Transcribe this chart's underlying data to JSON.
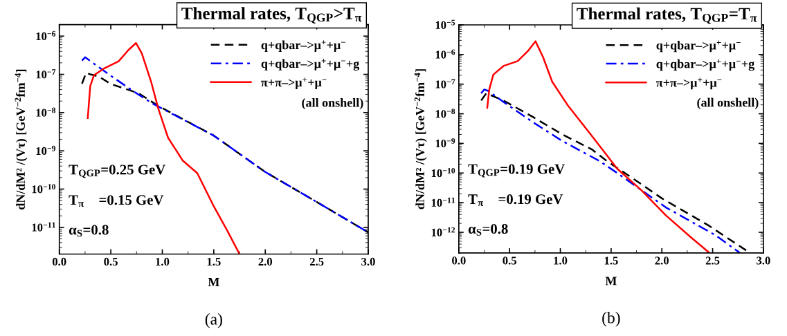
{
  "chart_data": [
    {
      "type": "line",
      "title": "Thermal rates, T$_{QGP}$>T$_{π}$",
      "xlabel": "M",
      "ylabel": "dN/dM² /(Vτ) [GeV$^{−2}$fm$^{−4}$]",
      "log": "y",
      "legend": "top right",
      "xlim": [
        0.0,
        3.0
      ],
      "xticks": [
        {
          "value": 0.0,
          "label": "0.0"
        },
        0.5,
        {
          "value": 1.0,
          "label": "1.0"
        },
        1.5,
        {
          "value": 2.0,
          "label": "2.0"
        },
        2.5,
        {
          "value": 3.0,
          "label": "3.0"
        }
      ],
      "ylim": [
        2e-12,
        2e-06
      ],
      "yticks": [
        {
          "value": 1e-11,
          "label": "10$^{−11}$"
        },
        {
          "value": 1e-10,
          "label": "10$^{−10}$"
        },
        {
          "value": 1e-09,
          "label": "10$^{−9}$"
        },
        {
          "value": 1e-08,
          "label": "10$^{−8}$"
        },
        {
          "value": 1e-07,
          "label": "10$^{−7}$"
        },
        {
          "value": 1e-06,
          "label": "10$^{−6}$"
        }
      ],
      "series": [
        {
          "name": "q+qbar–>μ$^{+}$+μ$^{−}$",
          "color": "#000000",
          "line_style": "dashed",
          "x": [
            0.22,
            0.26,
            0.3,
            0.38,
            0.5,
            0.77,
            0.96,
            1.5,
            2.0,
            2.5,
            3.0
          ],
          "values": [
            5.7e-08,
            1.1e-07,
            1e-07,
            8.9e-08,
            5.6e-08,
            3.2e-08,
            1.5e-08,
            2.5e-09,
            2.8e-10,
            4.6e-11,
            7.4e-12
          ]
        },
        {
          "name": "q+qbar–>μ$^{+}$+μ$^{−}$+g",
          "color": "#0000ff",
          "line_style": "dashdot",
          "x": [
            0.22,
            0.25,
            0.48,
            0.72,
            0.91,
            1.5,
            2.0,
            2.5,
            3.0
          ],
          "values": [
            2.3e-07,
            2.8e-07,
            1e-07,
            3.6e-08,
            1.7e-08,
            2.5e-09,
            2.8e-10,
            4.6e-11,
            7.4e-12
          ]
        },
        {
          "name": "π+π–>μ$^{+}$+μ$^{−}$",
          "color": "#ff0000",
          "line_style": "solid",
          "x": [
            0.276,
            0.3,
            0.336,
            0.43,
            0.576,
            0.67,
            0.744,
            0.8,
            0.89,
            0.96,
            1.056,
            1.2,
            1.34,
            1.49,
            1.63,
            1.75
          ],
          "values": [
            7.2e-09,
            4.9e-08,
            9.5e-08,
            1.4e-07,
            2.2e-07,
            4.3e-07,
            6.6e-07,
            3.6e-07,
            6.6e-08,
            1.3e-08,
            2.2e-09,
            5.5e-10,
            2.6e-10,
            4e-11,
            8.3e-12,
            2e-12
          ]
        }
      ],
      "annotations": [
        "(all onshell)",
        "T$_{QGP}$=0.25 GeV",
        "T$_{π}$    =0.15 GeV",
        "α$_{S}$=0.8",
        "(a)"
      ]
    },
    {
      "type": "line",
      "title": "Thermal rates, T$_{QGP}$=T$_{π}$",
      "xlabel": "M",
      "ylabel": "dN/dM² /(Vτ) [GeV$^{−2}$fm$^{−4}$]",
      "log": "y",
      "legend": "top right",
      "xlim": [
        0.0,
        3.0
      ],
      "xticks": [
        {
          "value": 0.0,
          "label": "0.0"
        },
        0.5,
        {
          "value": 1.0,
          "label": "1.0"
        },
        1.5,
        {
          "value": 2.0,
          "label": "2.0"
        },
        2.5,
        {
          "value": 3.0,
          "label": "3.0"
        }
      ],
      "ylim": [
        2e-13,
        1e-05
      ],
      "yticks": [
        {
          "value": 1e-12,
          "label": "10$^{−12}$"
        },
        {
          "value": 1e-11,
          "label": "10$^{−11}$"
        },
        {
          "value": 1e-10,
          "label": "10$^{−10}$"
        },
        {
          "value": 1e-09,
          "label": "10$^{−9}$"
        },
        {
          "value": 1e-08,
          "label": "10$^{−8}$"
        },
        {
          "value": 1e-07,
          "label": "10$^{−7}$"
        },
        {
          "value": 1e-06,
          "label": "10$^{−6}$"
        },
        {
          "value": 1e-05,
          "label": "10$^{−5}$"
        }
      ],
      "series": [
        {
          "name": "q+qbar–>μ$^{+}$+μ$^{−}$",
          "color": "#000000",
          "line_style": "dashed",
          "x": [
            0.22,
            0.27,
            0.44,
            0.73,
            1.02,
            1.31,
            1.46,
            1.7,
            2.0,
            2.46,
            2.86
          ],
          "values": [
            2.8e-08,
            4.9e-08,
            2.8e-08,
            7.8e-09,
            2e-09,
            6.3e-10,
            2.5e-10,
            7.1e-11,
            1.4e-11,
            1.7e-12,
            2.1e-13
          ]
        },
        {
          "name": "q+qbar–>μ$^{+}$+μ$^{−}$+g",
          "color": "#0000ff",
          "line_style": "dashdot",
          "x": [
            0.22,
            0.25,
            0.29,
            0.44,
            0.73,
            1.02,
            1.39,
            1.56,
            2.04,
            2.53,
            2.77
          ],
          "values": [
            4.9e-08,
            6.6e-08,
            5.9e-08,
            2.5e-08,
            5.2e-09,
            1.2e-09,
            2.5e-10,
            1e-10,
            6.9e-12,
            7.9e-13,
            2e-13
          ]
        },
        {
          "name": "π+π–>μ$^{+}$+μ$^{−}$",
          "color": "#ff0000",
          "line_style": "solid",
          "x": [
            0.28,
            0.3,
            0.34,
            0.44,
            0.58,
            0.68,
            0.755,
            0.83,
            0.92,
            1.07,
            1.31,
            1.56,
            1.8,
            2.04,
            2.29,
            2.47
          ],
          "values": [
            1.6e-08,
            6.6e-08,
            2.1e-07,
            4.1e-07,
            6e-07,
            1.3e-06,
            2.8e-06,
            8.1e-07,
            1.2e-07,
            2e-08,
            1.8e-09,
            1.4e-10,
            2.6e-11,
            3.7e-12,
            6.6e-13,
            2e-13
          ]
        }
      ],
      "annotations": [
        "(all onshell)",
        "T$_{QGP}$=0.19 GeV",
        "T$_{π}$    =0.19 GeV",
        "α$_{S}$=0.8",
        "(b)"
      ]
    }
  ]
}
